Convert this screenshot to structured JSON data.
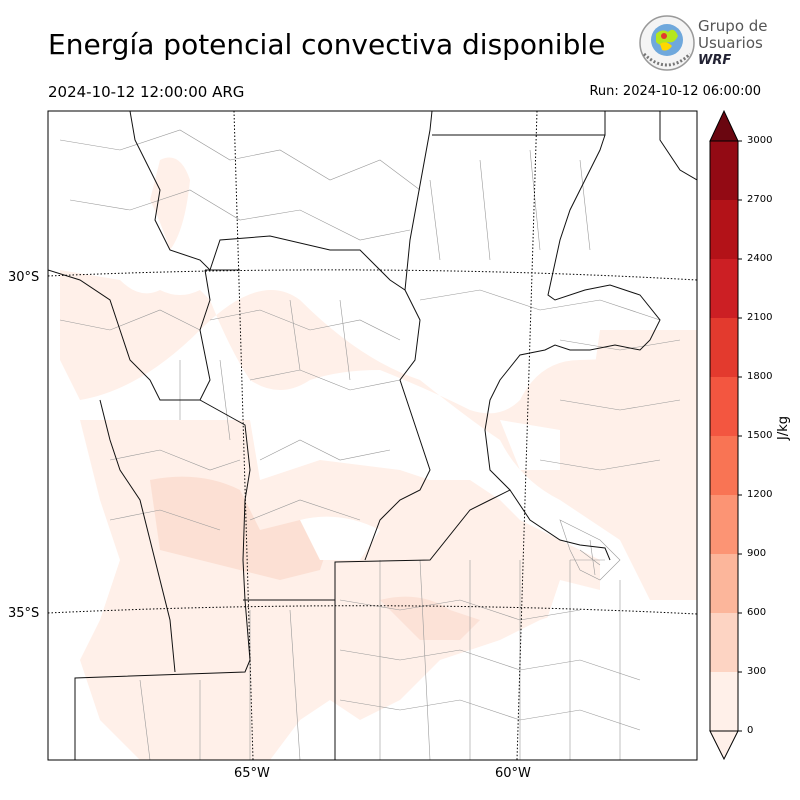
{
  "title": "Energía potencial convectiva disponible",
  "valid_time": "2024-10-12 12:00:00 ARG",
  "run_time": "Run: 2024-10-12 06:00:00",
  "logo": {
    "line1": "Grupo de",
    "line2": "Usuarios",
    "line3": "WRF"
  },
  "graticule": {
    "lat_labels": [
      "30°S",
      "35°S"
    ],
    "lon_labels": [
      "65°W",
      "60°W"
    ]
  },
  "colorbar": {
    "label": "J/kg",
    "levels": [
      0,
      300,
      600,
      900,
      1200,
      1500,
      1800,
      2100,
      2400,
      2700,
      3000
    ],
    "tick_labels": [
      "0",
      "300",
      "600",
      "900",
      "1200",
      "1500",
      "1800",
      "2100",
      "2400",
      "2700",
      "3000"
    ],
    "colors": [
      "#fff0e9",
      "#fdd4c3",
      "#fcb69b",
      "#fc9474",
      "#f97454",
      "#f35640",
      "#e33a2e",
      "#cc1f24",
      "#b31218",
      "#930a14",
      "#6a0610"
    ],
    "extend": "both"
  },
  "colors": {
    "land_border_province": "#111111",
    "land_border_department": "#999999",
    "graticule": "#000000"
  }
}
